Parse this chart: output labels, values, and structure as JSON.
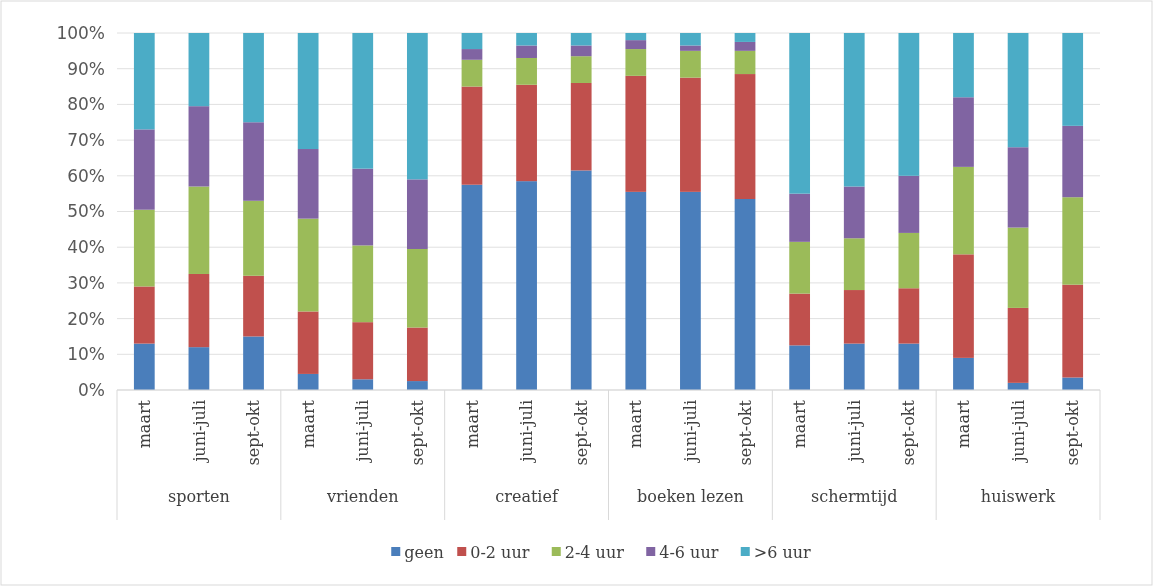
{
  "chart_data": {
    "type": "bar",
    "stacked": true,
    "categories": [
      "maart",
      "juni-juli",
      "sept-okt",
      "maart",
      "juni-juli",
      "sept-okt",
      "maart",
      "juni-juli",
      "sept-okt",
      "maart",
      "juni-juli",
      "sept-okt",
      "maart",
      "juni-juli",
      "sept-okt",
      "maart",
      "juni-juli",
      "sept-okt"
    ],
    "annotations": [
      "sporten",
      "vrienden",
      "creatief",
      "boeken lezen",
      "schermtijd",
      "huiswerk"
    ],
    "series": [
      {
        "name": "geen",
        "color": "#4a7ebb",
        "values": [
          13,
          12,
          15,
          4.5,
          3,
          2.5,
          57.5,
          58.5,
          61.5,
          55.5,
          55.5,
          53.5,
          12.5,
          13,
          13,
          9,
          2,
          3.5
        ]
      },
      {
        "name": "0-2 uur",
        "color": "#c0504d",
        "values": [
          16,
          20.5,
          17,
          17.5,
          16,
          15,
          27.5,
          27,
          24.5,
          32.5,
          32,
          35,
          14.5,
          15,
          15.5,
          29,
          21,
          26
        ]
      },
      {
        "name": "2-4 uur",
        "color": "#9bbb59",
        "values": [
          21.5,
          24.5,
          21,
          26,
          21.5,
          22,
          7.5,
          7.5,
          7.5,
          7.5,
          7.5,
          6.5,
          14.5,
          14.5,
          15.5,
          24.5,
          22.5,
          24.5
        ]
      },
      {
        "name": "4-6 uur",
        "color": "#8064a2",
        "values": [
          22.5,
          22.5,
          22,
          19.5,
          21.5,
          19.5,
          3,
          3.5,
          3,
          2.5,
          1.5,
          2.5,
          13.5,
          14.5,
          16,
          19.5,
          22.5,
          20
        ]
      },
      {
        "name": ">6 uur",
        "color": "#4bacc6",
        "values": [
          27,
          20.5,
          25,
          32.5,
          38,
          41,
          4.5,
          3.5,
          3.5,
          2,
          3.5,
          2.5,
          45,
          43,
          40,
          18,
          32,
          26
        ]
      }
    ],
    "ylim": [
      0,
      100
    ],
    "yticks": [
      {
        "value": 0,
        "label": "0%"
      },
      {
        "value": 10,
        "label": "10%"
      },
      {
        "value": 20,
        "label": "20%"
      },
      {
        "value": 30,
        "label": "30%"
      },
      {
        "value": 40,
        "label": "40%"
      },
      {
        "value": 50,
        "label": "50%"
      },
      {
        "value": 60,
        "label": "60%"
      },
      {
        "value": 70,
        "label": "70%"
      },
      {
        "value": 80,
        "label": "80%"
      },
      {
        "value": 90,
        "label": "90%"
      },
      {
        "value": 100,
        "label": "100%"
      }
    ],
    "grid": "y",
    "legend": "bottom"
  }
}
